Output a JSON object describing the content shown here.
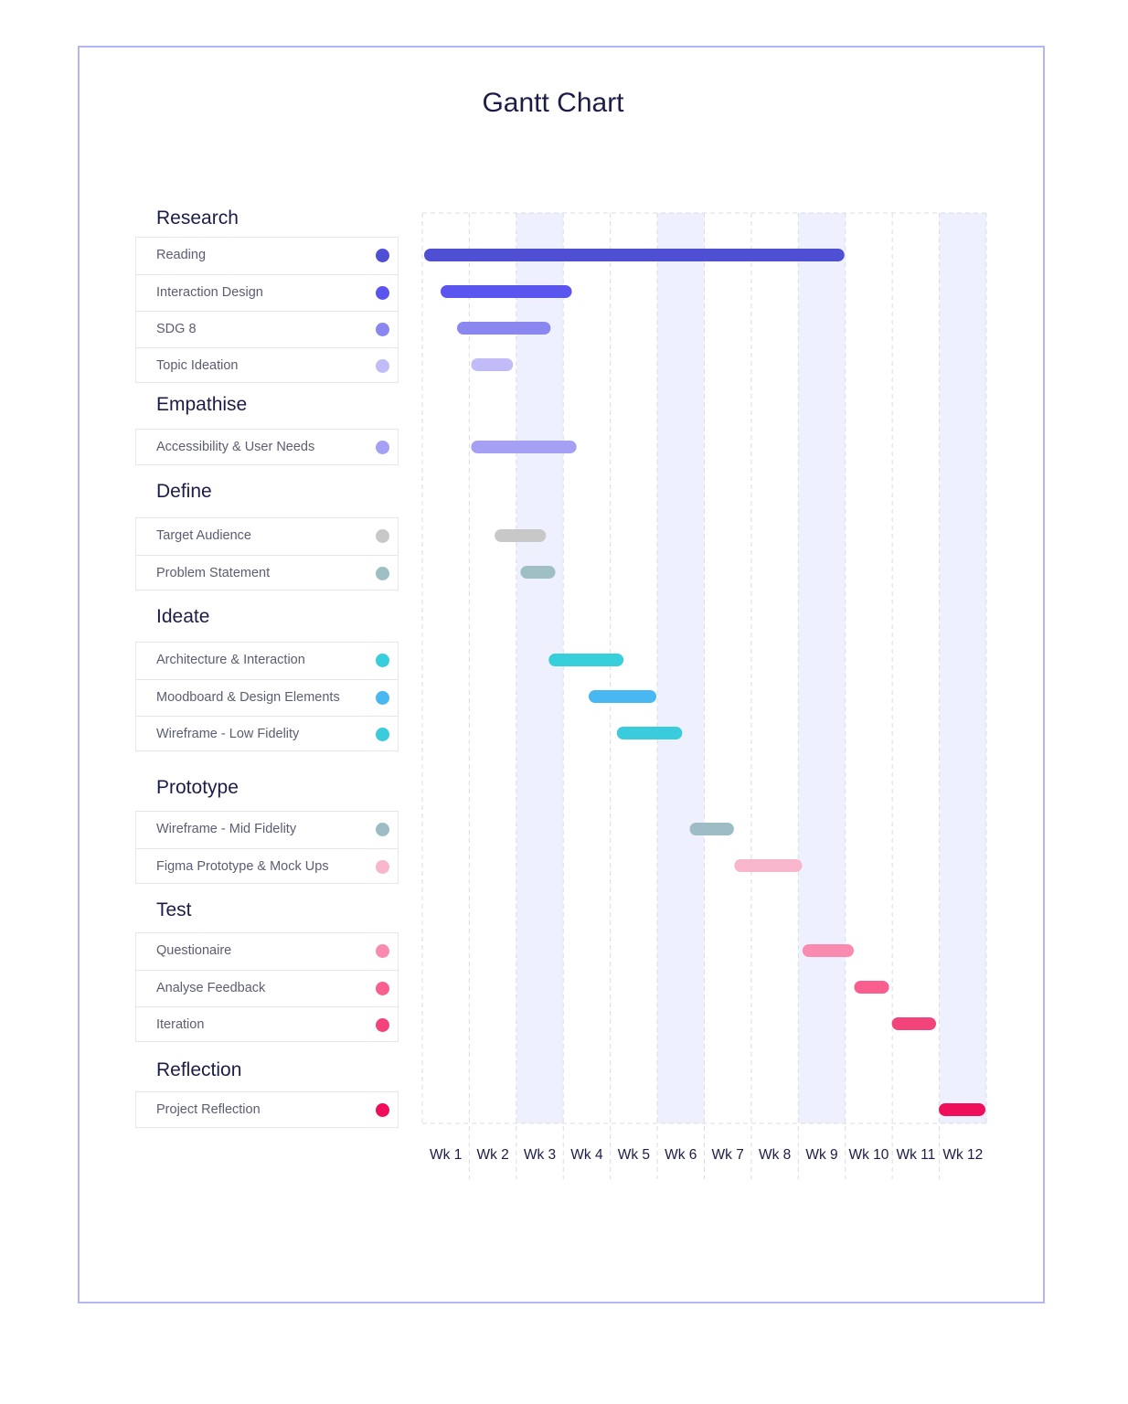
{
  "chart_data": {
    "type": "gantt",
    "title": "Gantt Chart",
    "weeks": [
      "Wk 1",
      "Wk 2",
      "Wk 3",
      "Wk 4",
      "Wk 5",
      "Wk 6",
      "Wk 7",
      "Wk 8",
      "Wk 9",
      "Wk 10",
      "Wk 11",
      "Wk 12"
    ],
    "x_range_weeks": [
      0,
      12
    ],
    "shaded_weeks": [
      "Wk 3",
      "Wk 6",
      "Wk 9",
      "Wk 12"
    ],
    "grid": true,
    "sections": [
      {
        "name": "Research",
        "tasks": [
          {
            "name": "Reading",
            "color": "#4f4fd4",
            "start": 0.0,
            "end": 9.0
          },
          {
            "name": "Interaction Design",
            "color": "#5b55f0",
            "start": 0.35,
            "end": 3.2
          },
          {
            "name": "SDG 8",
            "color": "#8b87f0",
            "start": 0.7,
            "end": 2.75
          },
          {
            "name": "Topic Ideation",
            "color": "#c1bcf8",
            "start": 1.0,
            "end": 1.95
          }
        ]
      },
      {
        "name": "Empathise",
        "tasks": [
          {
            "name": "Accessibility & User Needs",
            "color": "#a5a0f3",
            "start": 1.0,
            "end": 3.3
          }
        ]
      },
      {
        "name": "Define",
        "tasks": [
          {
            "name": "Target Audience",
            "color": "#c8c8c8",
            "start": 1.5,
            "end": 2.65
          },
          {
            "name": "Problem Statement",
            "color": "#9ec0c5",
            "start": 2.05,
            "end": 2.85
          }
        ]
      },
      {
        "name": "Ideate",
        "tasks": [
          {
            "name": "Architecture & Interaction",
            "color": "#38cfdc",
            "start": 2.65,
            "end": 4.3
          },
          {
            "name": "Moodboard & Design Elements",
            "color": "#49b7f1",
            "start": 3.5,
            "end": 5.0
          },
          {
            "name": "Wireframe - Low Fidelity",
            "color": "#3acbdc",
            "start": 4.1,
            "end": 5.55
          }
        ]
      },
      {
        "name": "Prototype",
        "tasks": [
          {
            "name": "Wireframe - Mid Fidelity",
            "color": "#9dbcc5",
            "start": 5.65,
            "end": 6.65
          },
          {
            "name": "Figma Prototype & Mock Ups",
            "color": "#f8b6cc",
            "start": 6.6,
            "end": 8.1
          }
        ]
      },
      {
        "name": "Test",
        "tasks": [
          {
            "name": "Questionaire",
            "color": "#f98ab0",
            "start": 8.05,
            "end": 9.2
          },
          {
            "name": "Analyse Feedback",
            "color": "#f85e8e",
            "start": 9.15,
            "end": 9.95
          },
          {
            "name": "Iteration",
            "color": "#f3437b",
            "start": 9.95,
            "end": 10.95
          }
        ]
      },
      {
        "name": "Reflection",
        "tasks": [
          {
            "name": "Project Reflection",
            "color": "#ef0e5a",
            "start": 10.95,
            "end": 12.0
          }
        ]
      }
    ]
  },
  "colors": {
    "title": "#1c1c48",
    "frame_border": "#b3b6f2",
    "shade": "#eff0fd",
    "grid_line": "#dadce6"
  }
}
